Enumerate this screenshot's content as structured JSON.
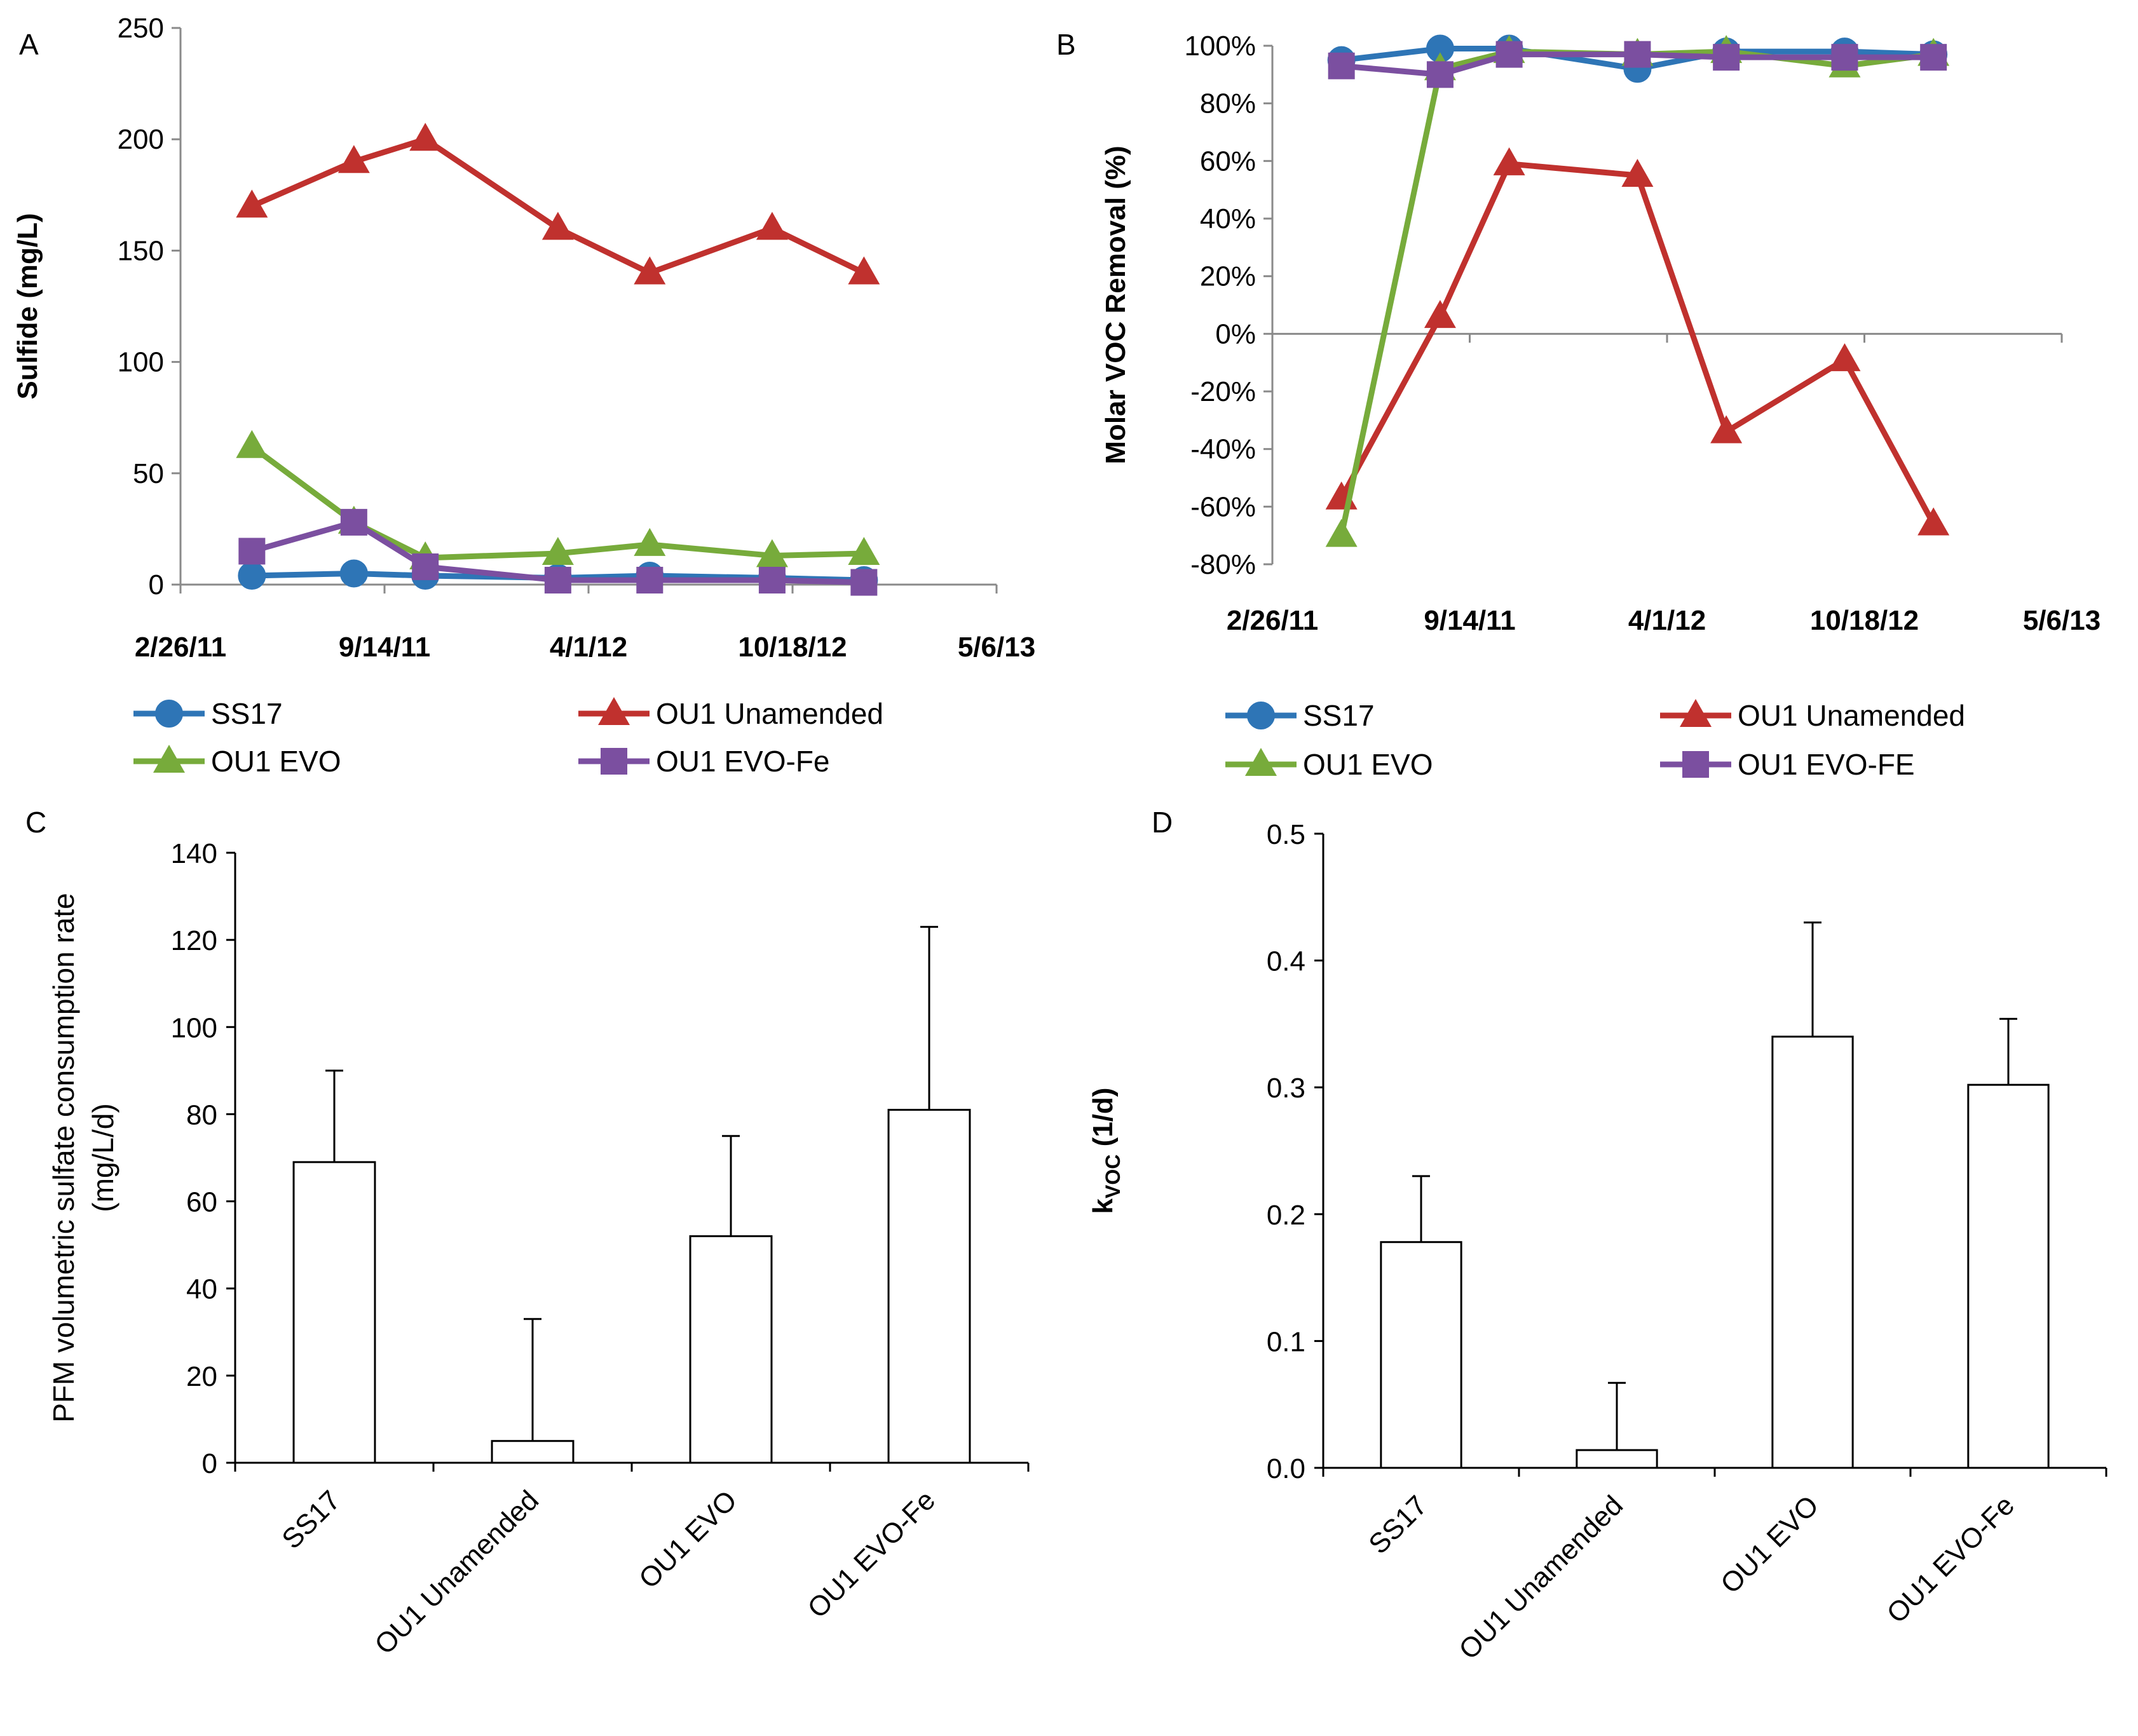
{
  "chart_data": [
    {
      "id": "A",
      "panel_label": "A",
      "type": "line",
      "ylabel": "Sulfide  (mg/L)",
      "ylim": [
        0,
        250
      ],
      "yticks": [
        0,
        50,
        100,
        150,
        200,
        250
      ],
      "xticks": [
        "2/26/11",
        "9/14/11",
        "4/1/12",
        "10/18/12",
        "5/6/13"
      ],
      "series": [
        {
          "name": "SS17",
          "color": "#2e75b6",
          "marker": "circle",
          "x": [
            0.35,
            0.85,
            1.2,
            1.85,
            2.3,
            2.9,
            3.35
          ],
          "y": [
            4,
            5,
            4,
            3,
            4,
            3,
            2
          ]
        },
        {
          "name": "OU1 Unamended",
          "color": "#c0312e",
          "marker": "triangle",
          "x": [
            0.35,
            0.85,
            1.2,
            1.85,
            2.3,
            2.9,
            3.35
          ],
          "y": [
            170,
            190,
            200,
            160,
            140,
            160,
            140
          ]
        },
        {
          "name": "OU1 EVO",
          "color": "#77ab3b",
          "marker": "triangle",
          "x": [
            0.35,
            0.85,
            1.2,
            1.85,
            2.3,
            2.9,
            3.35
          ],
          "y": [
            62,
            28,
            12,
            14,
            18,
            13,
            14
          ]
        },
        {
          "name": "OU1 EVO-Fe",
          "color": "#7b4fa0",
          "marker": "square",
          "x": [
            0.35,
            0.85,
            1.2,
            1.85,
            2.3,
            2.9,
            3.35
          ],
          "y": [
            15,
            28,
            8,
            2,
            2,
            2,
            1
          ]
        }
      ]
    },
    {
      "id": "B",
      "panel_label": "B",
      "type": "line",
      "ylabel": "Molar VOC Removal (%)",
      "ylim": [
        -80,
        100
      ],
      "yticks": [
        -80,
        -60,
        -40,
        -20,
        0,
        20,
        40,
        60,
        80,
        100
      ],
      "ytick_labels": [
        "-80%",
        "-60%",
        "-40%",
        "-20%",
        "0%",
        "20%",
        "40%",
        "60%",
        "80%",
        "100%"
      ],
      "xticks": [
        "2/26/11",
        "9/14/11",
        "4/1/12",
        "10/18/12",
        "5/6/13"
      ],
      "series": [
        {
          "name": "SS17",
          "color": "#2e75b6",
          "marker": "circle",
          "x": [
            0.35,
            0.85,
            1.2,
            1.85,
            2.3,
            2.9,
            3.35
          ],
          "y": [
            95,
            99,
            99,
            92,
            98,
            98,
            97
          ]
        },
        {
          "name": "OU1 Unamended",
          "color": "#c0312e",
          "marker": "triangle",
          "x": [
            0.35,
            0.85,
            1.2,
            1.85,
            2.3,
            2.9,
            3.35
          ],
          "y": [
            -57,
            6,
            59,
            55,
            -34,
            -9,
            -66
          ]
        },
        {
          "name": "OU1 EVO",
          "color": "#77ab3b",
          "marker": "triangle",
          "x": [
            0.35,
            0.85,
            1.2,
            1.85,
            2.3,
            2.9,
            3.35
          ],
          "y": [
            -70,
            92,
            98,
            97,
            98,
            93,
            97
          ]
        },
        {
          "name": "OU1 EVO-FE",
          "color": "#7b4fa0",
          "marker": "square",
          "x": [
            0.35,
            0.85,
            1.2,
            1.85,
            2.3,
            2.9,
            3.35
          ],
          "y": [
            93,
            90,
            97,
            97,
            96,
            96,
            96
          ]
        }
      ]
    },
    {
      "id": "C",
      "panel_label": "C",
      "type": "bar",
      "ylabel_lines": [
        "PFM volumetric sulfate consumption rate",
        "(mg/L/d)"
      ],
      "ylim": [
        0,
        140
      ],
      "yticks": [
        0,
        20,
        40,
        60,
        80,
        100,
        120,
        140
      ],
      "categories": [
        "SS17",
        "OU1 Unamended",
        "OU1 EVO",
        "OU1 EVO-Fe"
      ],
      "values": [
        69,
        5,
        52,
        81
      ],
      "error_plus": [
        21,
        28,
        23,
        42
      ]
    },
    {
      "id": "D",
      "panel_label": "D",
      "type": "bar",
      "ylabel": "kVOC (1/d)",
      "ylabel_main": "k",
      "ylabel_sub": "VOC",
      "ylabel_unit": " (1/d)",
      "ylim": [
        0,
        0.5
      ],
      "yticks": [
        0,
        0.1,
        0.2,
        0.3,
        0.4,
        0.5
      ],
      "ytick_labels": [
        "0.0",
        "0.1",
        "0.2",
        "0.3",
        "0.4",
        "0.5"
      ],
      "categories": [
        "SS17",
        "OU1 Unamended",
        "OU1 EVO",
        "OU1 EVO-Fe"
      ],
      "values": [
        0.178,
        0.014,
        0.34,
        0.302
      ],
      "error_plus": [
        0.052,
        0.053,
        0.09,
        0.052
      ]
    }
  ]
}
